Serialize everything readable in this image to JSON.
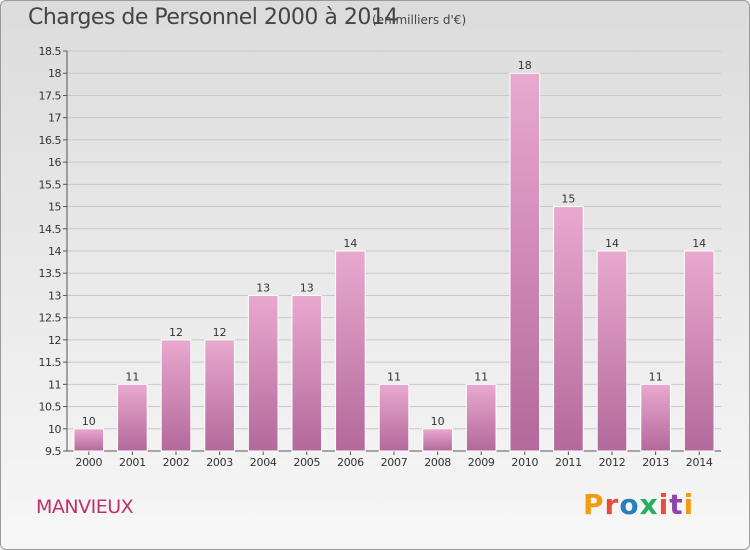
{
  "header": {
    "title": "Charges de Personnel 2000 à 2014",
    "unit": "(en milliers d'€)"
  },
  "footer": {
    "commune": "MANVIEUX",
    "logo_text": "Proxiti",
    "logo_colors": [
      "#f39c12",
      "#e74c3c",
      "#2980b9",
      "#27ae60",
      "#e74c3c",
      "#8e44ad",
      "#f39c12"
    ]
  },
  "colors": {
    "bar_light": "#e9a9cf",
    "bar_dark": "#b3699b",
    "commune": "#c0306a"
  },
  "chart_data": {
    "type": "bar",
    "categories": [
      "2000",
      "2001",
      "2002",
      "2003",
      "2004",
      "2005",
      "2006",
      "2007",
      "2008",
      "2009",
      "2010",
      "2011",
      "2012",
      "2013",
      "2014"
    ],
    "values": [
      10,
      11,
      12,
      12,
      13,
      13,
      14,
      11,
      10,
      11,
      18,
      15,
      14,
      11,
      14
    ],
    "value_labels": [
      "10",
      "11",
      "12",
      "12",
      "13",
      "13",
      "14",
      "11",
      "10",
      "11",
      "18",
      "15",
      "14",
      "11",
      "14"
    ],
    "ylim": [
      9.5,
      18.5
    ],
    "yticks": [
      9.5,
      10,
      10.5,
      11,
      11.5,
      12,
      12.5,
      13,
      13.5,
      14,
      14.5,
      15,
      15.5,
      16,
      16.5,
      17,
      17.5,
      18,
      18.5
    ],
    "ytick_labels": [
      "9.5",
      "10",
      "10.5",
      "11",
      "11.5",
      "12",
      "12.5",
      "13",
      "13.5",
      "14",
      "14.5",
      "15",
      "15.5",
      "16",
      "16.5",
      "17",
      "17.5",
      "18",
      "18.5"
    ],
    "grid": true
  }
}
